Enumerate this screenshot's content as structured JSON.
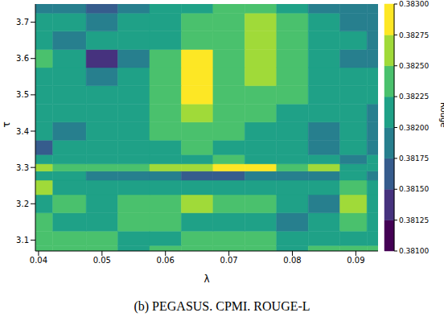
{
  "chart_data": {
    "type": "heatmap",
    "caption": "(b) PEGASUS. CPMI. ROUGE-L",
    "x_label": "λ",
    "y_label": "τ",
    "x": [
      0.0395,
      0.045,
      0.05,
      0.055,
      0.06,
      0.065,
      0.07,
      0.075,
      0.08,
      0.085,
      0.09,
      0.0935
    ],
    "y": [
      3.07,
      3.1,
      3.15,
      3.2,
      3.25,
      3.28,
      3.3,
      3.32,
      3.35,
      3.4,
      3.45,
      3.5,
      3.55,
      3.6,
      3.65,
      3.7,
      3.75
    ],
    "xlim": [
      0.0395,
      0.0935
    ],
    "ylim": [
      3.07,
      3.75
    ],
    "xticks": [
      0.04,
      0.05,
      0.06,
      0.07,
      0.08,
      0.09
    ],
    "yticks": [
      3.1,
      3.2,
      3.3,
      3.4,
      3.5,
      3.6,
      3.7
    ],
    "cells": [
      [
        0.382375,
        0.382375,
        0.382375,
        0.382125,
        0.382375,
        0.382375,
        0.382375,
        0.382375,
        0.382125,
        0.382375,
        0.382375,
        0.382375
      ],
      [
        0.382375,
        0.382375,
        0.382375,
        0.382125,
        0.382125,
        0.382375,
        0.382375,
        0.382375,
        0.382125,
        0.382125,
        0.382125,
        0.382125
      ],
      [
        0.382375,
        0.382125,
        0.382125,
        0.382375,
        0.382375,
        0.382125,
        0.382125,
        0.382125,
        0.381875,
        0.382125,
        0.382375,
        0.382125
      ],
      [
        0.382125,
        0.382375,
        0.382125,
        0.382375,
        0.382375,
        0.382625,
        0.382375,
        0.382375,
        0.382125,
        0.381875,
        0.382625,
        0.382125
      ],
      [
        0.382625,
        0.382125,
        0.382125,
        0.382125,
        0.382125,
        0.382125,
        0.382125,
        0.382125,
        0.382125,
        0.382125,
        0.382375,
        0.382125
      ],
      [
        0.382125,
        0.382125,
        0.381875,
        0.381875,
        0.381875,
        0.381625,
        0.381625,
        0.381875,
        0.381875,
        0.381875,
        0.382125,
        0.381875
      ],
      [
        0.382625,
        0.382375,
        0.382375,
        0.382375,
        0.382625,
        0.382625,
        0.382875,
        0.382875,
        0.382375,
        0.382625,
        0.382125,
        0.382125
      ],
      [
        0.382125,
        0.382125,
        0.382125,
        0.382125,
        0.382125,
        0.382125,
        0.382375,
        0.382125,
        0.382125,
        0.382125,
        0.381875,
        0.382125
      ],
      [
        0.381625,
        0.382125,
        0.382125,
        0.382125,
        0.382125,
        0.382375,
        0.382125,
        0.382125,
        0.382125,
        0.381875,
        0.382125,
        0.381875
      ],
      [
        0.382125,
        0.381875,
        0.382125,
        0.382125,
        0.382375,
        0.382375,
        0.382375,
        0.382125,
        0.382125,
        0.381875,
        0.382125,
        0.381875
      ],
      [
        0.382125,
        0.382125,
        0.382125,
        0.382125,
        0.382375,
        0.382625,
        0.382375,
        0.382375,
        0.382125,
        0.382125,
        0.382125,
        0.381875
      ],
      [
        0.382125,
        0.382125,
        0.382125,
        0.382125,
        0.382375,
        0.382875,
        0.382375,
        0.382375,
        0.382375,
        0.382125,
        0.382125,
        0.382125
      ],
      [
        0.382125,
        0.382125,
        0.381875,
        0.382125,
        0.382375,
        0.382875,
        0.382375,
        0.382625,
        0.382375,
        0.382125,
        0.382125,
        0.382125
      ],
      [
        0.382375,
        0.382125,
        0.381375,
        0.381875,
        0.382375,
        0.382875,
        0.382375,
        0.382625,
        0.382375,
        0.382125,
        0.381875,
        0.381875
      ],
      [
        0.382125,
        0.381875,
        0.382125,
        0.382125,
        0.382125,
        0.382375,
        0.382375,
        0.382625,
        0.382375,
        0.382125,
        0.382125,
        0.381875
      ],
      [
        0.382125,
        0.382125,
        0.381875,
        0.382125,
        0.382125,
        0.382375,
        0.382375,
        0.382625,
        0.382375,
        0.382125,
        0.381875,
        0.381875
      ],
      [
        0.381875,
        0.381875,
        0.381625,
        0.381875,
        0.382125,
        0.382125,
        0.382375,
        0.382375,
        0.382125,
        0.381875,
        0.381875,
        0.381875
      ]
    ],
    "colorbar": {
      "label": "Rouge",
      "range": [
        0.381,
        0.383
      ],
      "ticks": [
        {
          "value": 0.381,
          "label": "0.38100"
        },
        {
          "value": 0.38125,
          "label": "0.38125"
        },
        {
          "value": 0.3815,
          "label": "0.38150"
        },
        {
          "value": 0.38175,
          "label": "0.38175"
        },
        {
          "value": 0.382,
          "label": "0.38200"
        },
        {
          "value": 0.38225,
          "label": "0.38225"
        },
        {
          "value": 0.3825,
          "label": "0.38250"
        },
        {
          "value": 0.38275,
          "label": "0.38275"
        },
        {
          "value": 0.383,
          "label": "0.38300"
        }
      ],
      "colors": [
        "#440154",
        "#46327e",
        "#365c8d",
        "#277f8e",
        "#1fa187",
        "#4ac16d",
        "#a0da39",
        "#fde725"
      ]
    }
  }
}
